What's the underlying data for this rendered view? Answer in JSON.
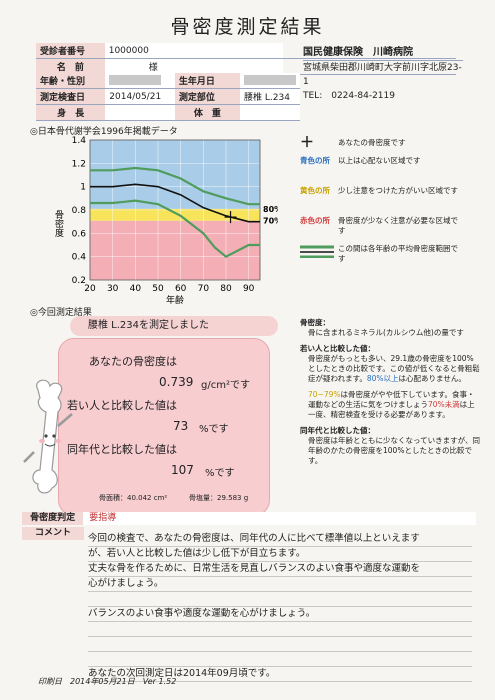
{
  "title": "骨密度測定結果",
  "info": {
    "id_label": "受診者番号",
    "id_value": "1000000",
    "name_label": "名　前",
    "name_suffix": "様",
    "age_label": "年齢・性別",
    "birth_label": "生年月日",
    "date_label": "測定検査日",
    "date_value": "2014/05/21",
    "site_label": "測定部位",
    "site_value": "腰椎 L.234",
    "height_label": "身　長",
    "weight_label": "体　重"
  },
  "hospital": {
    "name": "国民健康保険　川崎病院",
    "address": "宮城県柴田郡川崎町大字前川字北原23-1",
    "tel": "TEL:　0224-84-2119"
  },
  "chart_section_title": "◎日本骨代謝学会1996年掲載データ",
  "chart_data": {
    "type": "line",
    "ylabel": "骨密度",
    "xlabel": "年齢",
    "xlim": [
      20,
      95
    ],
    "ylim": [
      0.2,
      1.4
    ],
    "xticks": [
      20,
      30,
      40,
      50,
      60,
      70,
      80,
      90
    ],
    "yticks": [
      0.2,
      0.4,
      0.6,
      0.8,
      1.0,
      1.2,
      1.4
    ],
    "xtick_labels": [
      "20",
      "30",
      "40",
      "50",
      "60",
      "70",
      "80",
      "90"
    ],
    "ytick_labels": [
      "0.2",
      "0.4",
      "0.6",
      "0.8",
      "1",
      "1.2",
      "1.4"
    ],
    "bands": [
      {
        "name": "赤色の所",
        "from": 0.2,
        "to": 0.708,
        "color": "#f4aeb6"
      },
      {
        "name": "黄色の所",
        "from": 0.708,
        "to": 0.81,
        "color": "#f8e45a"
      },
      {
        "name": "青色の所",
        "from": 0.81,
        "to": 1.4,
        "color": "#a9cde8"
      }
    ],
    "band_labels": [
      "80%",
      "70%"
    ],
    "series": [
      {
        "color": "#111111",
        "x": [
          20,
          30,
          40,
          50,
          60,
          70,
          80,
          90,
          95
        ],
        "y": [
          1.0,
          1.0,
          1.02,
          1.0,
          0.93,
          0.82,
          0.75,
          0.7,
          0.7
        ]
      },
      {
        "color": "#4f9c5c",
        "x": [
          20,
          30,
          40,
          50,
          60,
          70,
          80,
          90,
          95
        ],
        "y": [
          1.14,
          1.14,
          1.16,
          1.14,
          1.07,
          0.96,
          0.9,
          0.85,
          0.85
        ]
      },
      {
        "color": "#4f9c5c",
        "x": [
          20,
          30,
          40,
          50,
          60,
          70,
          75,
          80,
          90,
          95
        ],
        "y": [
          0.86,
          0.86,
          0.88,
          0.85,
          0.75,
          0.6,
          0.48,
          0.4,
          0.5,
          0.5
        ]
      }
    ],
    "marker": {
      "x": 82,
      "y": 0.739
    }
  },
  "legend": {
    "marker_text": "あなたの骨密度です",
    "blue_key": "青色の所",
    "blue_text": "以上は心配ない区域です",
    "yellow_key": "黄色の所",
    "yellow_text": "少し注意をつけた方がいい区域です",
    "red_key": "赤色の所",
    "red_text": "骨密度が少なく注意が必要な区域です",
    "green_text": "この間は各年齢の平均骨密度範囲です"
  },
  "result": {
    "section_title": "◎今回測定結果",
    "banner": "腰椎 L.234を測定しました",
    "bmd_label": "あなたの骨密度は",
    "bmd_value": "0.739",
    "bmd_unit": "g/cm²です",
    "young_label": "若い人と比較した値は",
    "young_value": "73",
    "young_unit": "%です",
    "age_label": "同年代と比較した値は",
    "age_value": "107",
    "age_unit": "%です",
    "area": "骨面積：40.042 cm²",
    "salt": "骨塩量：29.583 g"
  },
  "explanation": {
    "h1": "骨密度：",
    "p1": "骨に含まれるミネラル(カルシウム他)の量です",
    "h2": "若い人と比較した値：",
    "p2": "骨密度がもっとも多い、29.1歳の骨密度を100%としたときの比較です。この値が低くなると骨粗鬆症が疑われます。",
    "p2b": "80%以上",
    "p2c": "は心配ありません。",
    "p3a": "70~79%",
    "p3": "は骨密度がやや低下しています。食事・運動などの生活に気をつけましょう",
    "p3b": "70%未満",
    "p3c": "は上一度、精密検査を受ける必要があります。",
    "h4": "同年代と比較した値：",
    "p4": "骨密度は年齢とともに少なくなっていきますが、同年齢のかたの骨密度を100%としたときの比較です。"
  },
  "comment": {
    "judge_label": "骨密度判定",
    "judge_value": "要指導",
    "comment_label": "コメント",
    "lines": [
      "今回の検査で、あなたの骨密度は、同年代の人に比べて標準値以上といえます",
      "が、若い人と比較した値は少し低下が目立ちます。",
      "丈夫な骨を作るために、日常生活を見直しバランスのよい食事や適度な運動を",
      "心がけましょう。",
      "",
      "バランスのよい食事や適度な運動を心がけましょう。",
      "",
      "",
      "",
      "あなたの次回測定日は2014年09月頃です。"
    ]
  },
  "footer": "印刷日　2014年05月21日　Ver 1.52"
}
